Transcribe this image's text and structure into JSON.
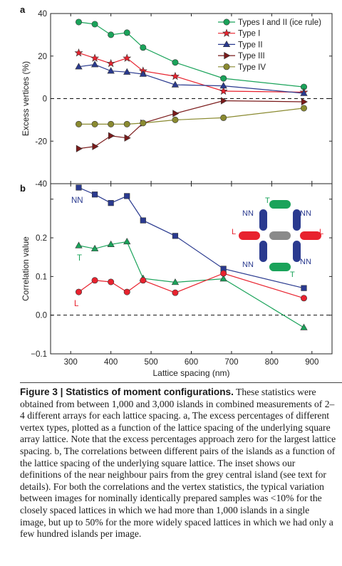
{
  "chart_data": [
    {
      "id": "a",
      "type": "line",
      "panel_label": "a",
      "ylabel": "Excess vertices (%)",
      "ylim": [
        -40,
        40
      ],
      "yticks": [
        -40,
        -20,
        0,
        20,
        40
      ],
      "xlim": [
        250,
        950
      ],
      "zero_line": true,
      "legend_position": "top-right",
      "series": [
        {
          "name": "Types I and II (ice rule)",
          "marker": "circle",
          "color": "#1aa35a",
          "x": [
            320,
            360,
            400,
            440,
            480,
            560,
            680,
            880
          ],
          "y": [
            36,
            35,
            30,
            31,
            24,
            17,
            9.5,
            5.5
          ]
        },
        {
          "name": "Type I",
          "marker": "star",
          "color": "#e8222e",
          "x": [
            320,
            360,
            400,
            440,
            480,
            560,
            680,
            880
          ],
          "y": [
            21.5,
            19,
            16.5,
            19,
            13,
            10.5,
            3.5,
            3
          ]
        },
        {
          "name": "Type II",
          "marker": "triangle-up",
          "color": "#2a3a8f",
          "x": [
            320,
            360,
            400,
            440,
            480,
            560,
            680,
            880
          ],
          "y": [
            15,
            16,
            13,
            12.5,
            11.5,
            6.5,
            6,
            2.5
          ]
        },
        {
          "name": "Type III",
          "marker": "triangle-right",
          "color": "#7a1a1a",
          "x": [
            320,
            360,
            400,
            440,
            480,
            560,
            680,
            880
          ],
          "y": [
            -23.5,
            -22.5,
            -17.5,
            -18.5,
            -11.5,
            -7,
            -1,
            -1.5
          ]
        },
        {
          "name": "Type IV",
          "marker": "circle",
          "color": "#8a8a30",
          "x": [
            320,
            360,
            400,
            440,
            480,
            560,
            680,
            880
          ],
          "y": [
            -12,
            -12,
            -12,
            -12,
            -11.5,
            -10,
            -9,
            -4.5
          ]
        }
      ]
    },
    {
      "id": "b",
      "type": "line",
      "panel_label": "b",
      "xlabel": "Lattice spacing (nm)",
      "ylabel": "Correlation value",
      "ylim": [
        -0.1,
        0.34
      ],
      "yticks": [
        -0.1,
        0.0,
        0.1,
        0.2,
        0.3
      ],
      "ytick_labels": [
        "−0.1",
        "0.0",
        "0.1",
        "0.2",
        "0.3"
      ],
      "xlim": [
        250,
        950
      ],
      "xticks": [
        300,
        400,
        500,
        600,
        700,
        800,
        900
      ],
      "zero_line": true,
      "series": [
        {
          "name": "NN",
          "marker": "square",
          "color": "#2a3a8f",
          "x": [
            320,
            360,
            400,
            440,
            480,
            560,
            680,
            880
          ],
          "y": [
            0.33,
            0.312,
            0.29,
            0.308,
            0.245,
            0.205,
            0.12,
            0.07
          ]
        },
        {
          "name": "T",
          "marker": "triangle-up",
          "color": "#1aa35a",
          "x": [
            320,
            360,
            400,
            440,
            480,
            560,
            680,
            880
          ],
          "y": [
            0.18,
            0.172,
            0.183,
            0.19,
            0.095,
            0.085,
            0.094,
            -0.032
          ]
        },
        {
          "name": "L",
          "marker": "circle",
          "color": "#e8222e",
          "x": [
            320,
            360,
            400,
            440,
            480,
            560,
            680,
            880
          ],
          "y": [
            0.06,
            0.09,
            0.086,
            0.06,
            0.09,
            0.058,
            0.108,
            0.044
          ]
        }
      ],
      "inset_labels": {
        "nn": "NN",
        "t": "T",
        "l": "L"
      }
    }
  ],
  "caption": {
    "title": "Figure 3 | Statistics of moment configurations.",
    "body": "These statistics were obtained from between 1,000 and 3,000 islands in combined measurements of 2–4 different arrays for each lattice spacing. a, The excess percentages of different vertex types, plotted as a function of the lattice spacing of the underlying square array lattice. Note that the excess percentages approach zero for the largest lattice spacing. b, The correlations between different pairs of the islands as a function of the lattice spacing of the underlying square lattice. The inset shows our definitions of the near neighbour pairs from the grey central island (see text for details). For both the correlations and the vertex statistics, the typical variation between images for nominally identically prepared samples was <10% for the closely spaced lattices in which we had more than 1,000 islands in a single image, but up to 50% for the more widely spaced lattices in which we had only a few hundred islands per image."
  }
}
